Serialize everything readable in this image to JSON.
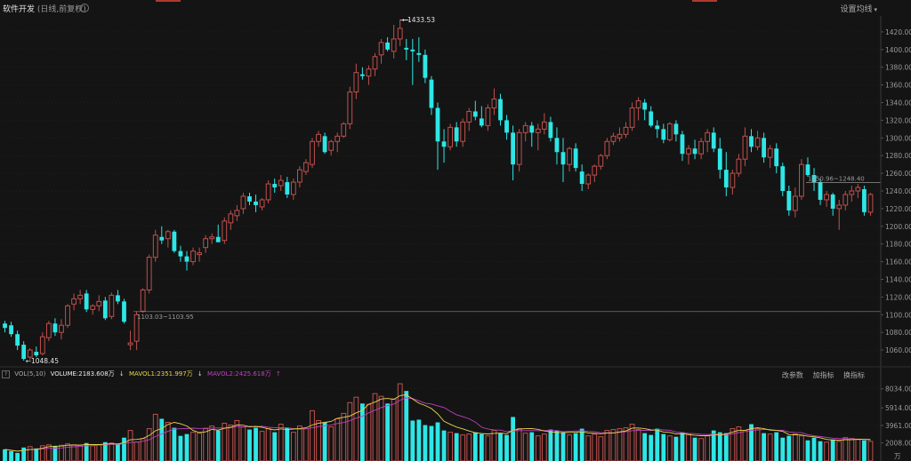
{
  "header": {
    "title": "软件开发",
    "subtitle": "(日线,前复权)",
    "settings_label": "设置均线"
  },
  "volume_bar": {
    "indicator": "VOL(5,10)",
    "volume_label": "VOLUME:2183.608万",
    "mavol1_label": "MAVOL1:2351.997万",
    "mavol2_label": "MAVOL2:2425.618万",
    "tools": [
      "改参数",
      "加指标",
      "换指标"
    ]
  },
  "colors": {
    "background": "#141414",
    "up": "#c0504d",
    "down": "#2ee6e6",
    "mavol1": "#e8d54a",
    "mavol2": "#c040c0",
    "grid": "#2a2a2a"
  },
  "chart_data": {
    "type": "candlestick",
    "price_axis": {
      "ticks": [
        1060,
        1080,
        1100,
        1120,
        1140,
        1160,
        1180,
        1200,
        1220,
        1240,
        1260,
        1280,
        1300,
        1320,
        1340,
        1360,
        1380,
        1400,
        1420
      ],
      "tick_labels": [
        "1060.00",
        "1080.00",
        "1100.00",
        "1120.00",
        "1140.00",
        "1160.00",
        "1180.00",
        "1200.00",
        "1220.00",
        "1240.00",
        "1260.00",
        "1280.00",
        "1300.00",
        "1320.00",
        "1340.00",
        "1360.00",
        "1380.00",
        "1400.00",
        "1420.00"
      ],
      "range": [
        1042,
        1438
      ]
    },
    "volume_axis": {
      "ticks": [
        2008,
        3961,
        5914,
        8034
      ],
      "tick_labels": [
        "2008.00",
        "3961.00",
        "5914.00",
        "8034.00"
      ],
      "unit_label": "万",
      "range": [
        0,
        8800
      ]
    },
    "annotations": {
      "high_label": "1433.53",
      "low_label": "1048.45",
      "ref_line_1": "1103.03~1103.95",
      "ref_line_2": "1250.96~1248.40"
    },
    "ohlc": [
      [
        1090,
        1093,
        1080,
        1085
      ],
      [
        1088,
        1092,
        1075,
        1078
      ],
      [
        1078,
        1082,
        1060,
        1065
      ],
      [
        1066,
        1070,
        1048,
        1050
      ],
      [
        1052,
        1062,
        1049,
        1060
      ],
      [
        1058,
        1064,
        1052,
        1054
      ],
      [
        1056,
        1080,
        1054,
        1075
      ],
      [
        1074,
        1093,
        1070,
        1090
      ],
      [
        1090,
        1096,
        1076,
        1080
      ],
      [
        1080,
        1095,
        1072,
        1088
      ],
      [
        1088,
        1112,
        1085,
        1110
      ],
      [
        1112,
        1124,
        1105,
        1118
      ],
      [
        1118,
        1128,
        1112,
        1122
      ],
      [
        1124,
        1128,
        1103,
        1106
      ],
      [
        1106,
        1112,
        1100,
        1110
      ],
      [
        1110,
        1122,
        1104,
        1115
      ],
      [
        1116,
        1120,
        1094,
        1096
      ],
      [
        1098,
        1125,
        1095,
        1122
      ],
      [
        1122,
        1128,
        1112,
        1115
      ],
      [
        1115,
        1118,
        1090,
        1092
      ],
      [
        1066,
        1082,
        1060,
        1068
      ],
      [
        1070,
        1104,
        1060,
        1100
      ],
      [
        1104,
        1130,
        1102,
        1128
      ],
      [
        1128,
        1168,
        1124,
        1165
      ],
      [
        1165,
        1196,
        1160,
        1190
      ],
      [
        1188,
        1200,
        1180,
        1184
      ],
      [
        1186,
        1196,
        1176,
        1194
      ],
      [
        1194,
        1196,
        1170,
        1172
      ],
      [
        1172,
        1178,
        1160,
        1166
      ],
      [
        1166,
        1172,
        1150,
        1160
      ],
      [
        1160,
        1176,
        1156,
        1172
      ],
      [
        1168,
        1176,
        1160,
        1170
      ],
      [
        1176,
        1190,
        1170,
        1186
      ],
      [
        1186,
        1192,
        1180,
        1188
      ],
      [
        1188,
        1202,
        1184,
        1182
      ],
      [
        1184,
        1210,
        1180,
        1206
      ],
      [
        1204,
        1218,
        1196,
        1214
      ],
      [
        1212,
        1224,
        1206,
        1218
      ],
      [
        1220,
        1238,
        1214,
        1234
      ],
      [
        1234,
        1238,
        1224,
        1228
      ],
      [
        1228,
        1236,
        1216,
        1224
      ],
      [
        1222,
        1232,
        1218,
        1230
      ],
      [
        1230,
        1252,
        1226,
        1248
      ],
      [
        1248,
        1254,
        1238,
        1244
      ],
      [
        1246,
        1258,
        1240,
        1252
      ],
      [
        1250,
        1256,
        1232,
        1236
      ],
      [
        1236,
        1254,
        1230,
        1250
      ],
      [
        1250,
        1268,
        1244,
        1264
      ],
      [
        1262,
        1276,
        1258,
        1272
      ],
      [
        1270,
        1300,
        1266,
        1296
      ],
      [
        1296,
        1308,
        1290,
        1304
      ],
      [
        1302,
        1306,
        1282,
        1284
      ],
      [
        1286,
        1298,
        1280,
        1296
      ],
      [
        1296,
        1306,
        1284,
        1302
      ],
      [
        1302,
        1318,
        1300,
        1316
      ],
      [
        1316,
        1358,
        1310,
        1352
      ],
      [
        1352,
        1384,
        1344,
        1374
      ],
      [
        1372,
        1380,
        1366,
        1370
      ],
      [
        1370,
        1382,
        1360,
        1378
      ],
      [
        1378,
        1396,
        1370,
        1392
      ],
      [
        1394,
        1412,
        1384,
        1408
      ],
      [
        1408,
        1414,
        1398,
        1400
      ],
      [
        1398,
        1428,
        1390,
        1412
      ],
      [
        1412,
        1433.53,
        1404,
        1424
      ],
      [
        1402,
        1412,
        1388,
        1400
      ],
      [
        1400,
        1412,
        1360,
        1398
      ],
      [
        1396,
        1414,
        1386,
        1394
      ],
      [
        1394,
        1400,
        1362,
        1368
      ],
      [
        1366,
        1370,
        1326,
        1334
      ],
      [
        1334,
        1340,
        1264,
        1296
      ],
      [
        1296,
        1310,
        1272,
        1290
      ],
      [
        1290,
        1316,
        1286,
        1312
      ],
      [
        1312,
        1318,
        1290,
        1296
      ],
      [
        1296,
        1322,
        1290,
        1318
      ],
      [
        1318,
        1334,
        1308,
        1330
      ],
      [
        1330,
        1342,
        1320,
        1324
      ],
      [
        1322,
        1336,
        1312,
        1314
      ],
      [
        1314,
        1338,
        1308,
        1334
      ],
      [
        1334,
        1356,
        1326,
        1344
      ],
      [
        1344,
        1350,
        1314,
        1320
      ],
      [
        1320,
        1326,
        1298,
        1306
      ],
      [
        1306,
        1314,
        1252,
        1270
      ],
      [
        1270,
        1310,
        1262,
        1306
      ],
      [
        1306,
        1318,
        1296,
        1314
      ],
      [
        1314,
        1318,
        1290,
        1306
      ],
      [
        1306,
        1316,
        1286,
        1310
      ],
      [
        1310,
        1328,
        1304,
        1318
      ],
      [
        1318,
        1324,
        1296,
        1300
      ],
      [
        1300,
        1312,
        1270,
        1284
      ],
      [
        1284,
        1300,
        1250,
        1270
      ],
      [
        1270,
        1290,
        1262,
        1288
      ],
      [
        1288,
        1294,
        1262,
        1266
      ],
      [
        1262,
        1270,
        1240,
        1248
      ],
      [
        1248,
        1260,
        1242,
        1258
      ],
      [
        1258,
        1270,
        1250,
        1268
      ],
      [
        1268,
        1282,
        1264,
        1280
      ],
      [
        1280,
        1300,
        1276,
        1296
      ],
      [
        1296,
        1306,
        1292,
        1302
      ],
      [
        1300,
        1312,
        1296,
        1304
      ],
      [
        1304,
        1318,
        1300,
        1312
      ],
      [
        1312,
        1340,
        1308,
        1334
      ],
      [
        1334,
        1346,
        1320,
        1342
      ],
      [
        1340,
        1344,
        1320,
        1332
      ],
      [
        1330,
        1336,
        1312,
        1314
      ],
      [
        1314,
        1320,
        1300,
        1310
      ],
      [
        1310,
        1316,
        1294,
        1298
      ],
      [
        1298,
        1318,
        1296,
        1316
      ],
      [
        1316,
        1320,
        1296,
        1304
      ],
      [
        1304,
        1308,
        1274,
        1282
      ],
      [
        1282,
        1292,
        1270,
        1288
      ],
      [
        1288,
        1298,
        1276,
        1282
      ],
      [
        1282,
        1300,
        1276,
        1296
      ],
      [
        1296,
        1310,
        1284,
        1306
      ],
      [
        1306,
        1312,
        1284,
        1288
      ],
      [
        1288,
        1300,
        1254,
        1264
      ],
      [
        1264,
        1284,
        1234,
        1244
      ],
      [
        1244,
        1264,
        1236,
        1260
      ],
      [
        1260,
        1282,
        1256,
        1276
      ],
      [
        1276,
        1312,
        1268,
        1302
      ],
      [
        1302,
        1310,
        1284,
        1290
      ],
      [
        1290,
        1308,
        1286,
        1300
      ],
      [
        1300,
        1306,
        1272,
        1278
      ],
      [
        1278,
        1292,
        1266,
        1288
      ],
      [
        1288,
        1294,
        1260,
        1268
      ],
      [
        1268,
        1272,
        1234,
        1240
      ],
      [
        1240,
        1246,
        1212,
        1218
      ],
      [
        1218,
        1244,
        1210,
        1234
      ],
      [
        1234,
        1276,
        1230,
        1270
      ],
      [
        1270,
        1278,
        1256,
        1258
      ],
      [
        1258,
        1266,
        1240,
        1250
      ],
      [
        1250,
        1254,
        1224,
        1230
      ],
      [
        1230,
        1240,
        1222,
        1236
      ],
      [
        1236,
        1238,
        1212,
        1220
      ],
      [
        1220,
        1230,
        1196,
        1224
      ],
      [
        1224,
        1240,
        1218,
        1236
      ],
      [
        1236,
        1246,
        1228,
        1240
      ],
      [
        1240,
        1248,
        1232,
        1244
      ],
      [
        1242,
        1246,
        1212,
        1216
      ],
      [
        1216,
        1238,
        1212,
        1236
      ]
    ],
    "volume": [
      1300,
      1100,
      900,
      1500,
      1600,
      1400,
      1700,
      1800,
      1650,
      1750,
      1900,
      1800,
      1750,
      2000,
      1700,
      1800,
      2100,
      2000,
      1900,
      2600,
      3400,
      2100,
      2500,
      3600,
      5200,
      4700,
      4300,
      3700,
      2800,
      3000,
      3200,
      3100,
      3600,
      3900,
      3400,
      4200,
      4000,
      4500,
      3800,
      3500,
      3700,
      3300,
      3600,
      3200,
      4100,
      3700,
      3200,
      3900,
      3600,
      5600,
      4500,
      4300,
      3800,
      4700,
      5300,
      6500,
      7100,
      6400,
      6300,
      7500,
      7200,
      6400,
      6900,
      8600,
      7800,
      4500,
      4600,
      4000,
      3900,
      4300,
      3400,
      3200,
      3100,
      2900,
      3000,
      3200,
      3000,
      2800,
      3400,
      3100,
      2900,
      4900,
      3600,
      3100,
      3200,
      2800,
      3000,
      3500,
      3400,
      3200,
      2900,
      3100,
      3600,
      2800,
      3000,
      2700,
      3400,
      3500,
      3600,
      3700,
      4100,
      3500,
      3100,
      2900,
      3600,
      3000,
      2800,
      2700,
      3200,
      3000,
      2600,
      2500,
      2800,
      3400,
      3200,
      3100,
      3600,
      3800,
      3400,
      4100,
      3600,
      3100,
      3000,
      3200,
      2600,
      2800,
      3000,
      2800,
      2300,
      2600,
      2200,
      2100,
      2400,
      2200,
      2600,
      2500,
      2400,
      2300,
      2183.608
    ],
    "mavol1": [
      1300,
      1200,
      1100,
      1200,
      1280,
      1300,
      1420,
      1600,
      1650,
      1660,
      1760,
      1780,
      1770,
      1840,
      1830,
      1830,
      1870,
      1920,
      1900,
      2040,
      2360,
      2400,
      2500,
      2840,
      3360,
      3620,
      4060,
      4300,
      4140,
      3900,
      3400,
      3160,
      3240,
      3520,
      3440,
      3640,
      3760,
      4000,
      3980,
      3800,
      3860,
      3760,
      3580,
      3460,
      3580,
      3500,
      3560,
      3620,
      3700,
      4000,
      4200,
      4300,
      4400,
      4760,
      4860,
      5000,
      5360,
      5640,
      6320,
      6560,
      6900,
      6960,
      6860,
      7280,
      7380,
      6900,
      6440,
      6180,
      5840,
      5240,
      4420,
      4080,
      3780,
      3580,
      3340,
      3140,
      3060,
      3020,
      3080,
      3100,
      3040,
      3420,
      3560,
      3600,
      3620,
      3520,
      3340,
      3240,
      3180,
      3140,
      3180,
      3200,
      3240,
      3120,
      3080,
      3040,
      3100,
      3100,
      3240,
      3340,
      3660,
      3680,
      3600,
      3460,
      3440,
      3220,
      3180,
      3020,
      3060,
      2940,
      2860,
      2820,
      2820,
      2900,
      2920,
      3000,
      3220,
      3420,
      3420,
      3600,
      3700,
      3600,
      3440,
      3400,
      3300,
      2940,
      2920,
      2900,
      2760,
      2700,
      2580,
      2400,
      2320,
      2300,
      2360,
      2360,
      2420,
      2400,
      2351.997
    ],
    "mavol2": [
      1300,
      1200,
      1100,
      1200,
      1280,
      1300,
      1350,
      1400,
      1430,
      1450,
      1520,
      1580,
      1640,
      1700,
      1710,
      1770,
      1820,
      1860,
      1860,
      1940,
      2060,
      2120,
      2200,
      2360,
      2720,
      3010,
      3300,
      3550,
      3590,
      3620,
      3660,
      3620,
      3650,
      3670,
      3680,
      3680,
      3700,
      3840,
      3780,
      3860,
      3800,
      3880,
      3760,
      3720,
      3720,
      3700,
      3600,
      3540,
      3580,
      3700,
      3830,
      3930,
      3990,
      4170,
      4280,
      4480,
      4780,
      4970,
      5360,
      5660,
      5950,
      6160,
      6340,
      6770,
      7020,
      6950,
      6700,
      6440,
      6350,
      6140,
      5950,
      5540,
      5150,
      4930,
      4700,
      4330,
      3760,
      3570,
      3450,
      3440,
      3260,
      3360,
      3380,
      3380,
      3390,
      3370,
      3390,
      3400,
      3380,
      3260,
      3300,
      3340,
      3360,
      3290,
      3250,
      3140,
      3130,
      3140,
      3180,
      3260,
      3380,
      3400,
      3420,
      3390,
      3500,
      3460,
      3420,
      3230,
      3150,
      3080,
      3050,
      2980,
      2950,
      2970,
      2970,
      2920,
      3020,
      3160,
      3270,
      3400,
      3460,
      3510,
      3520,
      3410,
      3420,
      3230,
      3170,
      3150,
      2940,
      2810,
      2720,
      2630,
      2540,
      2500,
      2470,
      2460,
      2420,
      2430,
      2425.618
    ]
  }
}
